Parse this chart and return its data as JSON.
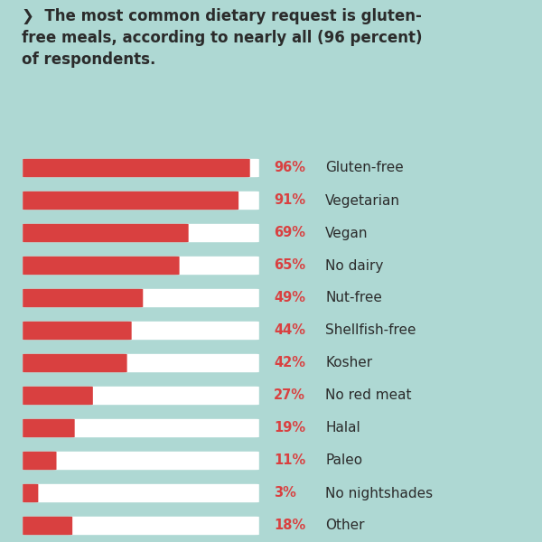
{
  "title_lines": [
    "❯  The most common dietary request is gluten-",
    "free meals, according to nearly all (96 percent)",
    "of respondents."
  ],
  "bg_color": "#aed8d3",
  "bar_bg_color": "#ffffff",
  "bar_fg_color": "#d94040",
  "pct_color": "#d94040",
  "label_color": "#2b2b2b",
  "title_color": "#2b2b2b",
  "categories": [
    "Gluten-free",
    "Vegetarian",
    "Vegan",
    "No dairy",
    "Nut-free",
    "Shellfish-free",
    "Kosher",
    "No red meat",
    "Halal",
    "Paleo",
    "No nightshades",
    "Other"
  ],
  "values": [
    96,
    91,
    69,
    65,
    49,
    44,
    42,
    27,
    19,
    11,
    3,
    18
  ],
  "bar_max": 100,
  "bar_height": 0.55,
  "pct_fontsize": 10.5,
  "label_fontsize": 11,
  "title_fontsize": 12
}
